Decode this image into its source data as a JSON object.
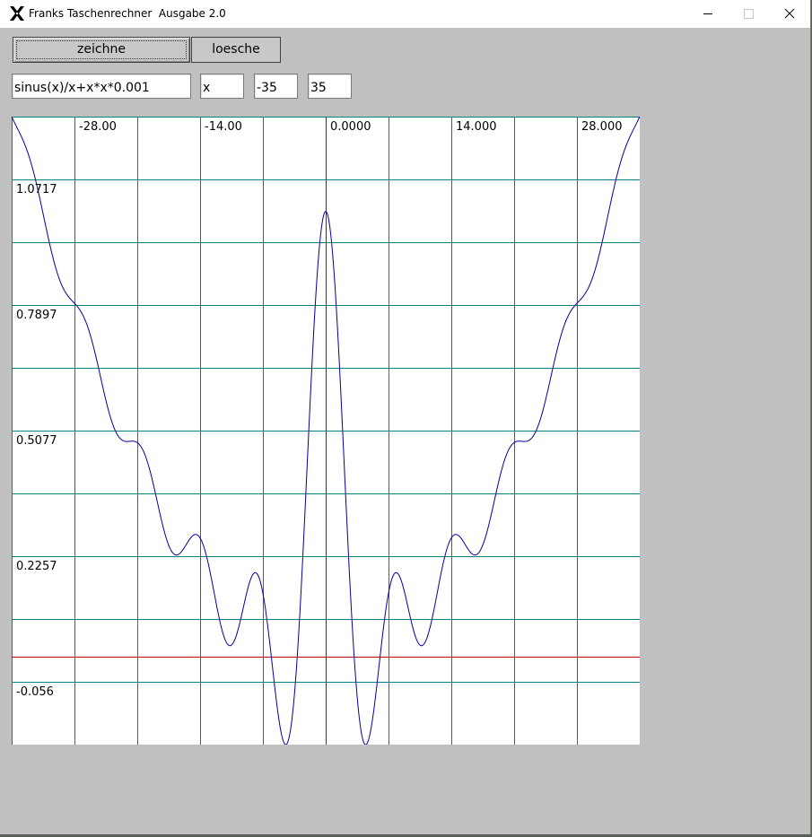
{
  "window": {
    "title": "Franks Taschenrechner  Ausgabe 2.0",
    "icon": "x-window-icon",
    "controls": [
      "minimize-icon",
      "maximize-icon",
      "close-icon"
    ]
  },
  "toolbar": {
    "draw_label": "zeichne",
    "clear_label": "loesche"
  },
  "inputs": {
    "expression": "sinus(x)/x+x*x*0.001",
    "variable": "x",
    "x_min": "-35",
    "x_max": "35"
  },
  "colors": {
    "window_bg": "#c0c0c0",
    "plot_bg": "#ffffff",
    "grid": "#008080",
    "axis": "#c00000",
    "curve": "#0000a0"
  },
  "chart_data": {
    "type": "line",
    "function": "sinus(x)/x+x*x*0.001",
    "xlim": [
      -35,
      35
    ],
    "ylim": [
      -0.197,
      1.2127
    ],
    "grid": true,
    "x_tick_labels": [
      {
        "value": -28,
        "label": "-28.00"
      },
      {
        "value": -14,
        "label": "-14.00"
      },
      {
        "value": 0,
        "label": "0.0000"
      },
      {
        "value": 14,
        "label": "14.000"
      },
      {
        "value": 28,
        "label": "28.000"
      }
    ],
    "y_tick_labels": [
      {
        "value": 1.0717,
        "label": "1.0717"
      },
      {
        "value": 0.7897,
        "label": "0.7897"
      },
      {
        "value": 0.5077,
        "label": "0.5077"
      },
      {
        "value": 0.2257,
        "label": "0.2257"
      },
      {
        "value": -0.056,
        "label": "-0.056"
      }
    ],
    "x_grid": [
      -35,
      -28,
      -21,
      -14,
      -7,
      0,
      7,
      14,
      21,
      28,
      35
    ],
    "y_grid": [
      1.2127,
      1.0717,
      0.9307,
      0.7897,
      0.6487,
      0.5077,
      0.3667,
      0.2257,
      0.0847,
      -0.056,
      -0.197
    ],
    "series": [
      {
        "x": [
          -35,
          -33,
          -31,
          -29,
          -28,
          -27,
          -26,
          -24,
          -22,
          -20,
          -19,
          -17,
          -15,
          -14,
          -13,
          -12,
          -11,
          -10,
          -9,
          -8,
          -7.5,
          -7,
          -6,
          -5,
          -4.5,
          -4,
          -3,
          -2,
          -1,
          0,
          1,
          2,
          3,
          4,
          4.5,
          5,
          6,
          7,
          7.5,
          8,
          9,
          10,
          11,
          12,
          13,
          14,
          15,
          17,
          19,
          20,
          22,
          24,
          26,
          27,
          28,
          29,
          31,
          33,
          35
        ],
        "y": [
          1.2003,
          1.1291,
          0.9836,
          0.8358,
          0.7889,
          0.7619,
          0.7146,
          0.6079,
          0.5229,
          0.4046,
          0.3352,
          0.2431,
          0.2683,
          0.2676,
          0.2002,
          0.1033,
          0.0427,
          0.0456,
          0.1268,
          0.1877,
          0.1907,
          0.1429,
          0.0002,
          -0.1668,
          -0.1979,
          -0.1732,
          0.056,
          0.4587,
          0.8425,
          1.0,
          0.8425,
          0.4587,
          0.056,
          -0.1732,
          -0.1979,
          -0.1668,
          0.0002,
          0.1429,
          0.1907,
          0.1877,
          0.1268,
          0.0456,
          0.0427,
          0.1033,
          0.2002,
          0.2676,
          0.2683,
          0.2431,
          0.3352,
          0.4046,
          0.5229,
          0.6079,
          0.7146,
          0.7619,
          0.7889,
          0.8358,
          0.9836,
          1.1291,
          1.2003
        ]
      }
    ]
  }
}
